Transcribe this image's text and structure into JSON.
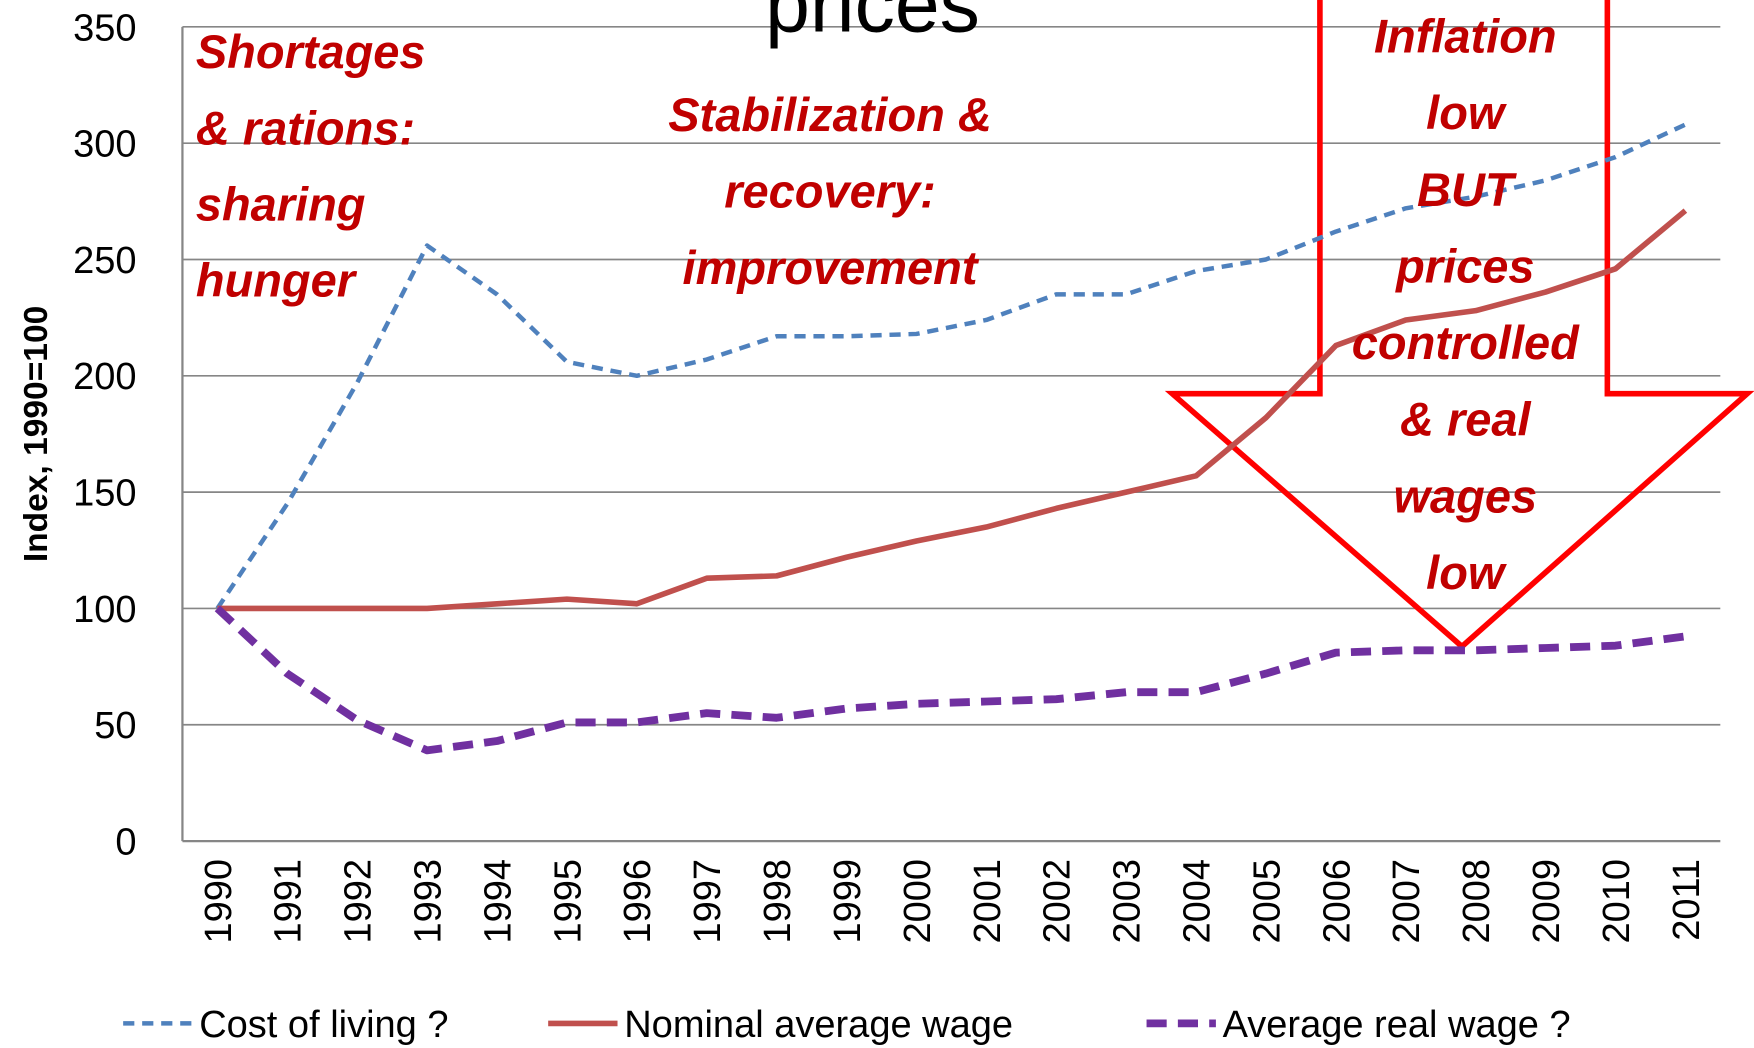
{
  "chart_data": {
    "type": "line",
    "title": "prices",
    "y_label": "Index, 1990=100",
    "categories": [
      "1990",
      "1991",
      "1992",
      "1993",
      "1994",
      "1995",
      "1996",
      "1997",
      "1998",
      "1999",
      "2000",
      "2001",
      "2002",
      "2003",
      "2004",
      "2005",
      "2006",
      "2007",
      "2008",
      "2009",
      "2010",
      "2011"
    ],
    "series": [
      {
        "name": "Cost of living ?",
        "color": "#4f81bd",
        "dash": "short",
        "values": [
          100,
          145,
          197,
          256,
          235,
          206,
          200,
          207,
          217,
          217,
          218,
          224,
          235,
          235,
          245,
          250,
          262,
          272,
          277,
          284,
          294,
          308
        ]
      },
      {
        "name": "Nominal average wage",
        "color": "#c0504d",
        "dash": "none",
        "values": [
          100,
          100,
          100,
          100,
          102,
          104,
          102,
          113,
          114,
          122,
          129,
          135,
          143,
          150,
          157,
          182,
          213,
          224,
          228,
          236,
          246,
          271
        ]
      },
      {
        "name": "Average real wage ?",
        "color": "#7030a0",
        "dash": "long",
        "values": [
          100,
          72,
          52,
          39,
          43,
          51,
          51,
          55,
          53,
          57,
          59,
          60,
          61,
          64,
          64,
          72,
          81,
          82,
          82,
          83,
          84,
          88
        ]
      }
    ],
    "ylim": [
      0,
      350
    ],
    "yticks": [
      0,
      50,
      100,
      150,
      200,
      250,
      300,
      350
    ],
    "grid": true,
    "annotations": [
      {
        "lines": [
          "Shortages",
          "& rations:",
          "sharing",
          "hunger"
        ],
        "color": "#c00000"
      },
      {
        "lines": [
          "Stabilization &",
          "recovery:",
          "improvement"
        ],
        "color": "#c00000"
      },
      {
        "lines": [
          "Inflation",
          "low",
          "BUT",
          "prices",
          "controlled",
          "& real",
          "wages",
          "low"
        ],
        "color": "#c00000"
      }
    ]
  }
}
